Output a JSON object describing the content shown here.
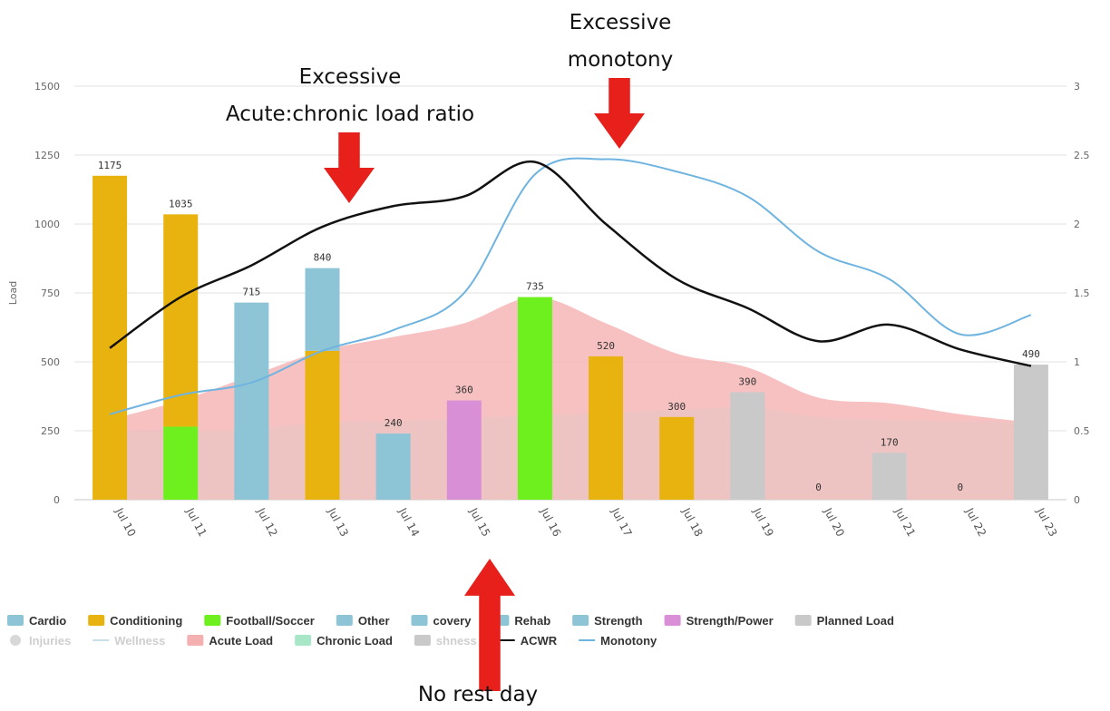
{
  "chart_data": {
    "type": "bar",
    "ylabel": "Load",
    "ylim": [
      0,
      1500
    ],
    "y2lim": [
      0,
      3
    ],
    "yticks": [
      0,
      250,
      500,
      750,
      1000,
      1250,
      1500
    ],
    "y2ticks": [
      "0",
      "0.5",
      "1",
      "1.5",
      "2",
      "2.5",
      "3"
    ],
    "grid": true,
    "categories": [
      "Jul 10",
      "Jul 11",
      "Jul 12",
      "Jul 13",
      "Jul 14",
      "Jul 15",
      "Jul 16",
      "Jul 17",
      "Jul 18",
      "Jul 19",
      "Jul 20",
      "Jul 21",
      "Jul 22",
      "Jul 23"
    ],
    "bar_stacks": [
      [
        {
          "series": "Conditioning",
          "value": 1175
        }
      ],
      [
        {
          "series": "Football/Soccer",
          "value": 265
        },
        {
          "series": "Conditioning",
          "value": 770
        }
      ],
      [
        {
          "series": "Strength",
          "value": 715
        }
      ],
      [
        {
          "series": "Conditioning",
          "value": 540
        },
        {
          "series": "Strength",
          "value": 300
        }
      ],
      [
        {
          "series": "Strength",
          "value": 240
        }
      ],
      [
        {
          "series": "Strength/Power",
          "value": 360
        }
      ],
      [
        {
          "series": "Football/Soccer",
          "value": 735
        }
      ],
      [
        {
          "series": "Conditioning",
          "value": 520
        }
      ],
      [
        {
          "series": "Conditioning",
          "value": 300
        }
      ],
      [
        {
          "series": "Planned Load",
          "value": 390
        }
      ],
      [],
      [
        {
          "series": "Planned Load",
          "value": 170
        }
      ],
      [],
      [
        {
          "series": "Planned Load",
          "value": 490
        }
      ]
    ],
    "bar_totals": [
      "1175",
      "1035",
      "715",
      "840",
      "240",
      "360",
      "735",
      "520",
      "300",
      "390",
      "0",
      "170",
      "0",
      "490"
    ],
    "acute_load": [
      290,
      360,
      450,
      540,
      590,
      640,
      735,
      640,
      530,
      480,
      370,
      350,
      310,
      280
    ],
    "chronic_load": [
      250,
      250,
      255,
      280,
      285,
      295,
      305,
      315,
      325,
      335,
      300,
      290,
      285,
      280
    ],
    "acwr": [
      1.1,
      1.47,
      1.7,
      1.98,
      2.13,
      2.2,
      2.45,
      2.0,
      1.6,
      1.39,
      1.15,
      1.27,
      1.09,
      0.97
    ],
    "monotony": [
      0.62,
      0.76,
      0.85,
      1.08,
      1.23,
      1.5,
      2.36,
      2.47,
      2.38,
      2.2,
      1.8,
      1.6,
      1.2,
      1.34
    ],
    "legend": {
      "placement": "bottom",
      "row1": [
        {
          "name": "Cardio",
          "marker": "box",
          "color": "#8ec5d6",
          "muted": false
        },
        {
          "name": "Conditioning",
          "marker": "box",
          "color": "#e8b30f",
          "muted": false
        },
        {
          "name": "Football/Soccer",
          "marker": "box",
          "color": "#6ef01e",
          "muted": false
        },
        {
          "name": "Other",
          "marker": "box",
          "color": "#8ec5d6",
          "muted": false
        },
        {
          "name": "covery",
          "marker": "box",
          "color": "#8ec5d6",
          "muted": false
        },
        {
          "name": "Rehab",
          "marker": "box",
          "color": "#8ec5d6",
          "muted": false
        },
        {
          "name": "Strength",
          "marker": "box",
          "color": "#8ec5d6",
          "muted": false
        },
        {
          "name": "Strength/Power",
          "marker": "box",
          "color": "#d98fd6",
          "muted": false
        },
        {
          "name": "Planned Load",
          "marker": "box",
          "color": "#c9c9c9",
          "muted": false
        }
      ],
      "row2": [
        {
          "name": "Injuries",
          "marker": "dot",
          "color": "#d8d8d8",
          "muted": true
        },
        {
          "name": "Wellness",
          "marker": "line",
          "color": "#c8dde6",
          "muted": true
        },
        {
          "name": "Acute Load",
          "marker": "box",
          "color": "#f4b0b0",
          "muted": false
        },
        {
          "name": "Chronic Load",
          "marker": "box",
          "color": "#a8e6c8",
          "muted": false
        },
        {
          "name": "shness",
          "marker": "box",
          "color": "#c9c9c9",
          "muted": true
        },
        {
          "name": "ACWR",
          "marker": "line",
          "color": "#111111",
          "muted": false
        },
        {
          "name": "Monotony",
          "marker": "line",
          "color": "#6fb4e0",
          "muted": false
        }
      ]
    }
  },
  "colors": {
    "Conditioning": "#e8b30f",
    "Football/Soccer": "#6ef01e",
    "Strength": "#8ec5d6",
    "Strength/Power": "#d98fd6",
    "Planned Load": "#c9c9c9",
    "acute_fill": "#f6b6b6",
    "chronic_fill": "#e8c6c4",
    "acwr": "#111111",
    "monotony": "#6fb4e0",
    "arrow": "#e8201c"
  },
  "annotations": [
    {
      "lines": [
        "Excessive",
        "Acute:chronic load ratio"
      ],
      "arrow": "down"
    },
    {
      "lines": [
        "Excessive",
        "monotony"
      ],
      "arrow": "down"
    },
    {
      "lines": [
        "No rest day"
      ],
      "arrow": "up"
    }
  ]
}
